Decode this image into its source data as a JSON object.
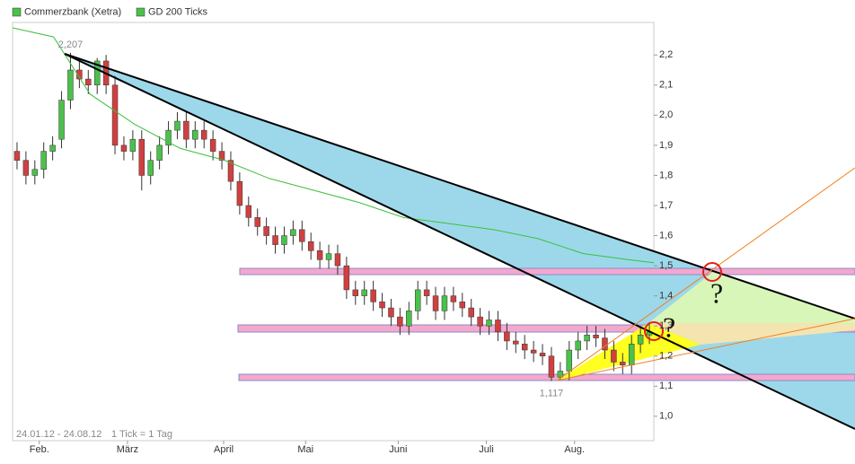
{
  "chart_data": {
    "type": "candlestick",
    "legend": [
      {
        "name": "Commerzbank (Xetra)",
        "color": "#4cc04c"
      },
      {
        "name": "GD 200 Ticks",
        "color": "#4cc04c"
      }
    ],
    "date_range": "24.01.12 - 24.08.12",
    "tick_note": "1 Tick = 1 Tag",
    "open": [
      1.88,
      1.85,
      1.8,
      1.82,
      1.88,
      1.92,
      2.05,
      2.15,
      2.12,
      2.1,
      2.18,
      2.1,
      1.9,
      1.88,
      1.92,
      1.8,
      1.85,
      1.9,
      1.95,
      1.98,
      1.92,
      1.95,
      1.92,
      1.88,
      1.85,
      1.78,
      1.7,
      1.66,
      1.63,
      1.6,
      1.57,
      1.6,
      1.62,
      1.58,
      1.55,
      1.52,
      1.54,
      1.5,
      1.42,
      1.4,
      1.42,
      1.38,
      1.36,
      1.33,
      1.3,
      1.35,
      1.42,
      1.4,
      1.35,
      1.4,
      1.38,
      1.36,
      1.33,
      1.3,
      1.32,
      1.28,
      1.25,
      1.24,
      1.22,
      1.21,
      1.2,
      1.13,
      1.15,
      1.22,
      1.25,
      1.27,
      1.26,
      1.22,
      1.18,
      1.17,
      1.24,
      1.27
    ],
    "high": [
      1.91,
      1.88,
      1.85,
      1.91,
      1.93,
      2.08,
      2.207,
      2.18,
      2.15,
      2.19,
      2.2,
      2.13,
      1.93,
      1.95,
      1.95,
      1.88,
      1.93,
      1.98,
      2.01,
      2.01,
      1.98,
      1.98,
      1.95,
      1.91,
      1.88,
      1.81,
      1.73,
      1.69,
      1.66,
      1.63,
      1.63,
      1.65,
      1.65,
      1.61,
      1.58,
      1.57,
      1.57,
      1.53,
      1.45,
      1.45,
      1.45,
      1.41,
      1.39,
      1.36,
      1.38,
      1.45,
      1.45,
      1.43,
      1.43,
      1.43,
      1.41,
      1.39,
      1.36,
      1.35,
      1.35,
      1.31,
      1.28,
      1.27,
      1.25,
      1.24,
      1.23,
      1.18,
      1.25,
      1.28,
      1.3,
      1.3,
      1.29,
      1.25,
      1.21,
      1.27,
      1.3,
      1.31
    ],
    "low": [
      1.82,
      1.77,
      1.77,
      1.79,
      1.85,
      1.89,
      2.02,
      2.09,
      2.07,
      2.07,
      2.07,
      1.87,
      1.85,
      1.85,
      1.75,
      1.77,
      1.82,
      1.87,
      1.92,
      1.89,
      1.89,
      1.89,
      1.85,
      1.82,
      1.75,
      1.67,
      1.63,
      1.6,
      1.57,
      1.54,
      1.54,
      1.57,
      1.55,
      1.52,
      1.49,
      1.49,
      1.47,
      1.39,
      1.37,
      1.37,
      1.35,
      1.33,
      1.3,
      1.27,
      1.27,
      1.32,
      1.37,
      1.32,
      1.32,
      1.35,
      1.33,
      1.3,
      1.27,
      1.27,
      1.25,
      1.22,
      1.21,
      1.19,
      1.18,
      1.17,
      1.117,
      1.12,
      1.12,
      1.19,
      1.22,
      1.23,
      1.19,
      1.15,
      1.14,
      1.14,
      1.21,
      1.24
    ],
    "close": [
      1.85,
      1.8,
      1.82,
      1.88,
      1.9,
      2.05,
      2.15,
      2.12,
      2.1,
      2.18,
      2.1,
      1.9,
      1.88,
      1.92,
      1.8,
      1.85,
      1.9,
      1.95,
      1.98,
      1.92,
      1.95,
      1.92,
      1.88,
      1.85,
      1.78,
      1.7,
      1.66,
      1.63,
      1.6,
      1.57,
      1.6,
      1.62,
      1.58,
      1.55,
      1.52,
      1.54,
      1.5,
      1.42,
      1.4,
      1.42,
      1.38,
      1.36,
      1.33,
      1.3,
      1.35,
      1.42,
      1.4,
      1.35,
      1.4,
      1.38,
      1.36,
      1.33,
      1.3,
      1.32,
      1.28,
      1.25,
      1.24,
      1.22,
      1.21,
      1.2,
      1.13,
      1.15,
      1.22,
      1.25,
      1.27,
      1.26,
      1.22,
      1.18,
      1.17,
      1.24,
      1.27,
      1.28
    ],
    "up_color": "#4cc04c",
    "down_color": "#d04040",
    "average": {
      "color": "#3cc03c",
      "x": [
        0,
        4.6,
        8.7,
        13.7,
        18.8,
        23.8,
        28.8,
        33.9,
        38.9,
        43.9,
        49,
        54,
        59,
        64.1,
        69.2,
        72
      ],
      "values": [
        2.29,
        2.26,
        2.07,
        1.97,
        1.89,
        1.85,
        1.79,
        1.75,
        1.71,
        1.66,
        1.64,
        1.62,
        1.59,
        1.54,
        1.52,
        1.51
      ]
    },
    "annotations": [
      {
        "label": "2,207",
        "value": 2.207,
        "x": 6
      },
      {
        "label": "1,117",
        "value": 1.117,
        "x": 60
      }
    ],
    "xlim": [
      0,
      72
    ],
    "xticks": [
      {
        "value": 3,
        "label": "Feb."
      },
      {
        "value": 12.9,
        "label": "März"
      },
      {
        "value": 23.7,
        "label": "April"
      },
      {
        "value": 32.9,
        "label": "Mai"
      },
      {
        "value": 43.3,
        "label": "Juni"
      },
      {
        "value": 53.2,
        "label": "Juli"
      },
      {
        "value": 63.1,
        "label": "Aug."
      }
    ],
    "ylim": [
      0.919,
      2.308
    ],
    "yticks": [
      {
        "value": 1.0,
        "label": "1,0"
      },
      {
        "value": 1.1,
        "label": "1,1"
      },
      {
        "value": 1.2,
        "label": "1,2"
      },
      {
        "value": 1.3,
        "label": "1,3"
      },
      {
        "value": 1.4,
        "label": "1,4"
      },
      {
        "value": 1.5,
        "label": "1,5"
      },
      {
        "value": 1.6,
        "label": "1,6"
      },
      {
        "value": 1.7,
        "label": "1,7"
      },
      {
        "value": 1.8,
        "label": "1,8"
      },
      {
        "value": 1.9,
        "label": "1,9"
      },
      {
        "value": 2.0,
        "label": "2,0"
      },
      {
        "value": 2.1,
        "label": "2,1"
      },
      {
        "value": 2.2,
        "label": "2,2"
      }
    ]
  }
}
